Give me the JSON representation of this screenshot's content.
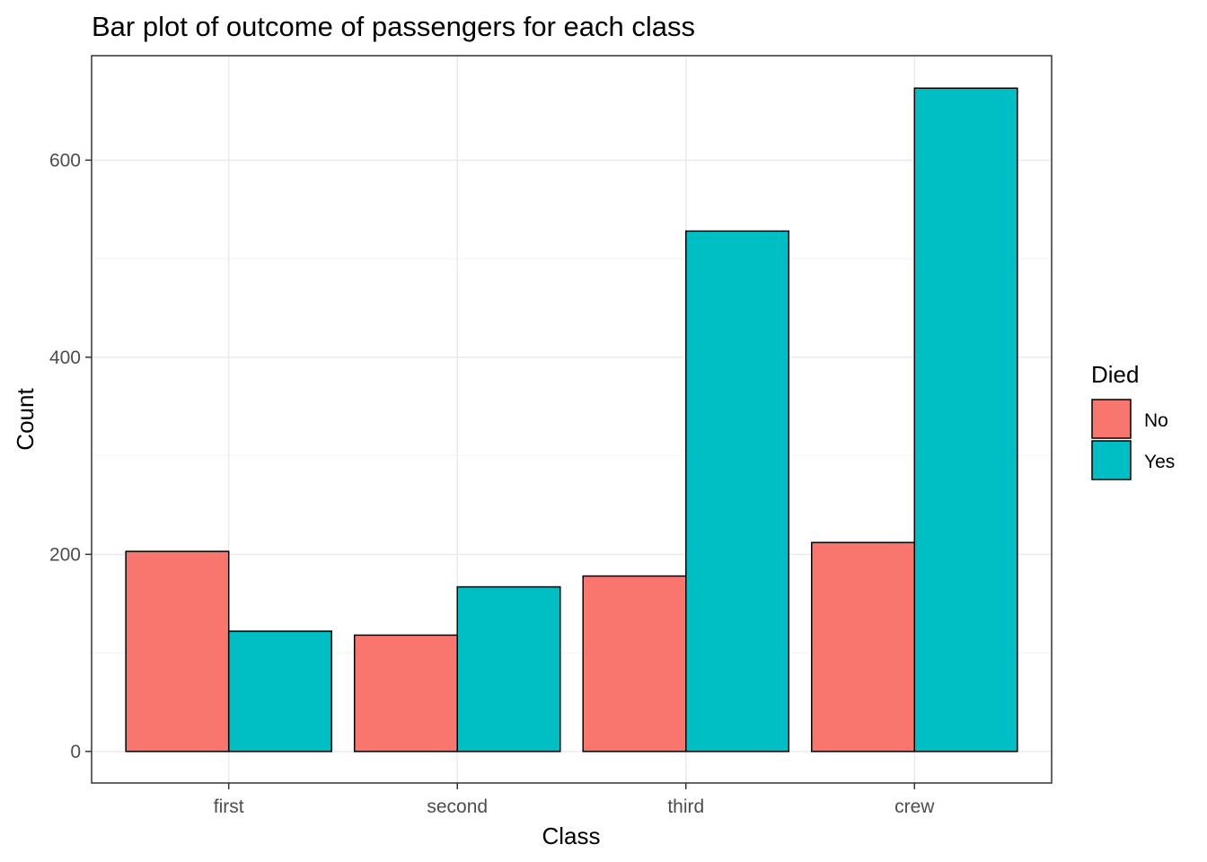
{
  "chart_data": {
    "type": "bar",
    "title": "Bar plot of outcome of passengers for each class",
    "xlabel": "Class",
    "ylabel": "Count",
    "categories": [
      "first",
      "second",
      "third",
      "crew"
    ],
    "series": [
      {
        "name": "No",
        "values": [
          203,
          118,
          178,
          212
        ],
        "color": "#F8766D"
      },
      {
        "name": "Yes",
        "values": [
          122,
          167,
          528,
          673
        ],
        "color": "#00BFC4"
      }
    ],
    "ylim": [
      -32,
      706
    ],
    "yticks": [
      0,
      200,
      400,
      600
    ],
    "grid": true,
    "legend": {
      "title": "Died",
      "position": "right"
    }
  }
}
